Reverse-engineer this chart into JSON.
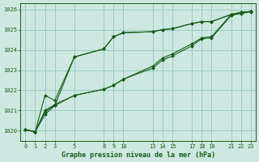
{
  "title": "Graphe pression niveau de la mer (hPa)",
  "bg_color": "#cce8e0",
  "grid_color": "#99ccc2",
  "line_color": "#1a5c1a",
  "marker_color": "#1a5c1a",
  "xlim": [
    -0.5,
    23.5
  ],
  "ylim": [
    1019.5,
    1026.3
  ],
  "xticks": [
    0,
    1,
    2,
    3,
    5,
    8,
    9,
    10,
    13,
    14,
    15,
    17,
    18,
    19,
    21,
    22,
    23
  ],
  "yticks": [
    1020,
    1021,
    1022,
    1023,
    1024,
    1025,
    1026
  ],
  "series": [
    {
      "x": [
        0,
        1,
        2,
        3,
        5,
        8,
        9,
        10,
        13,
        14,
        15,
        17,
        18,
        19,
        21,
        22,
        23
      ],
      "y": [
        1020.05,
        1019.95,
        1020.8,
        1021.25,
        1023.65,
        1024.05,
        1024.65,
        1024.85,
        1024.9,
        1025.0,
        1025.05,
        1025.3,
        1025.4,
        1025.4,
        1025.75,
        1025.85,
        1025.9
      ]
    },
    {
      "x": [
        0,
        1,
        2,
        3,
        5,
        8,
        9,
        10,
        13,
        14,
        15,
        17,
        18,
        19,
        21,
        22,
        23
      ],
      "y": [
        1020.05,
        1019.95,
        1021.75,
        1021.5,
        1023.65,
        1024.05,
        1024.65,
        1024.85,
        1024.9,
        1025.0,
        1025.05,
        1025.3,
        1025.4,
        1025.4,
        1025.75,
        1025.85,
        1025.9
      ]
    },
    {
      "x": [
        0,
        1,
        2,
        3,
        5,
        8,
        9,
        10,
        13,
        14,
        15,
        17,
        18,
        19,
        21,
        22,
        23
      ],
      "y": [
        1020.05,
        1019.95,
        1021.0,
        1021.3,
        1021.75,
        1022.05,
        1022.25,
        1022.55,
        1023.2,
        1023.6,
        1023.8,
        1024.3,
        1024.6,
        1024.65,
        1025.75,
        1025.85,
        1025.9
      ]
    },
    {
      "x": [
        0,
        1,
        2,
        3,
        5,
        8,
        9,
        10,
        13,
        14,
        15,
        17,
        18,
        19,
        21,
        22,
        23
      ],
      "y": [
        1020.05,
        1019.95,
        1020.95,
        1021.25,
        1021.75,
        1022.05,
        1022.25,
        1022.55,
        1023.1,
        1023.5,
        1023.7,
        1024.2,
        1024.55,
        1024.6,
        1025.7,
        1025.8,
        1025.88
      ]
    }
  ]
}
